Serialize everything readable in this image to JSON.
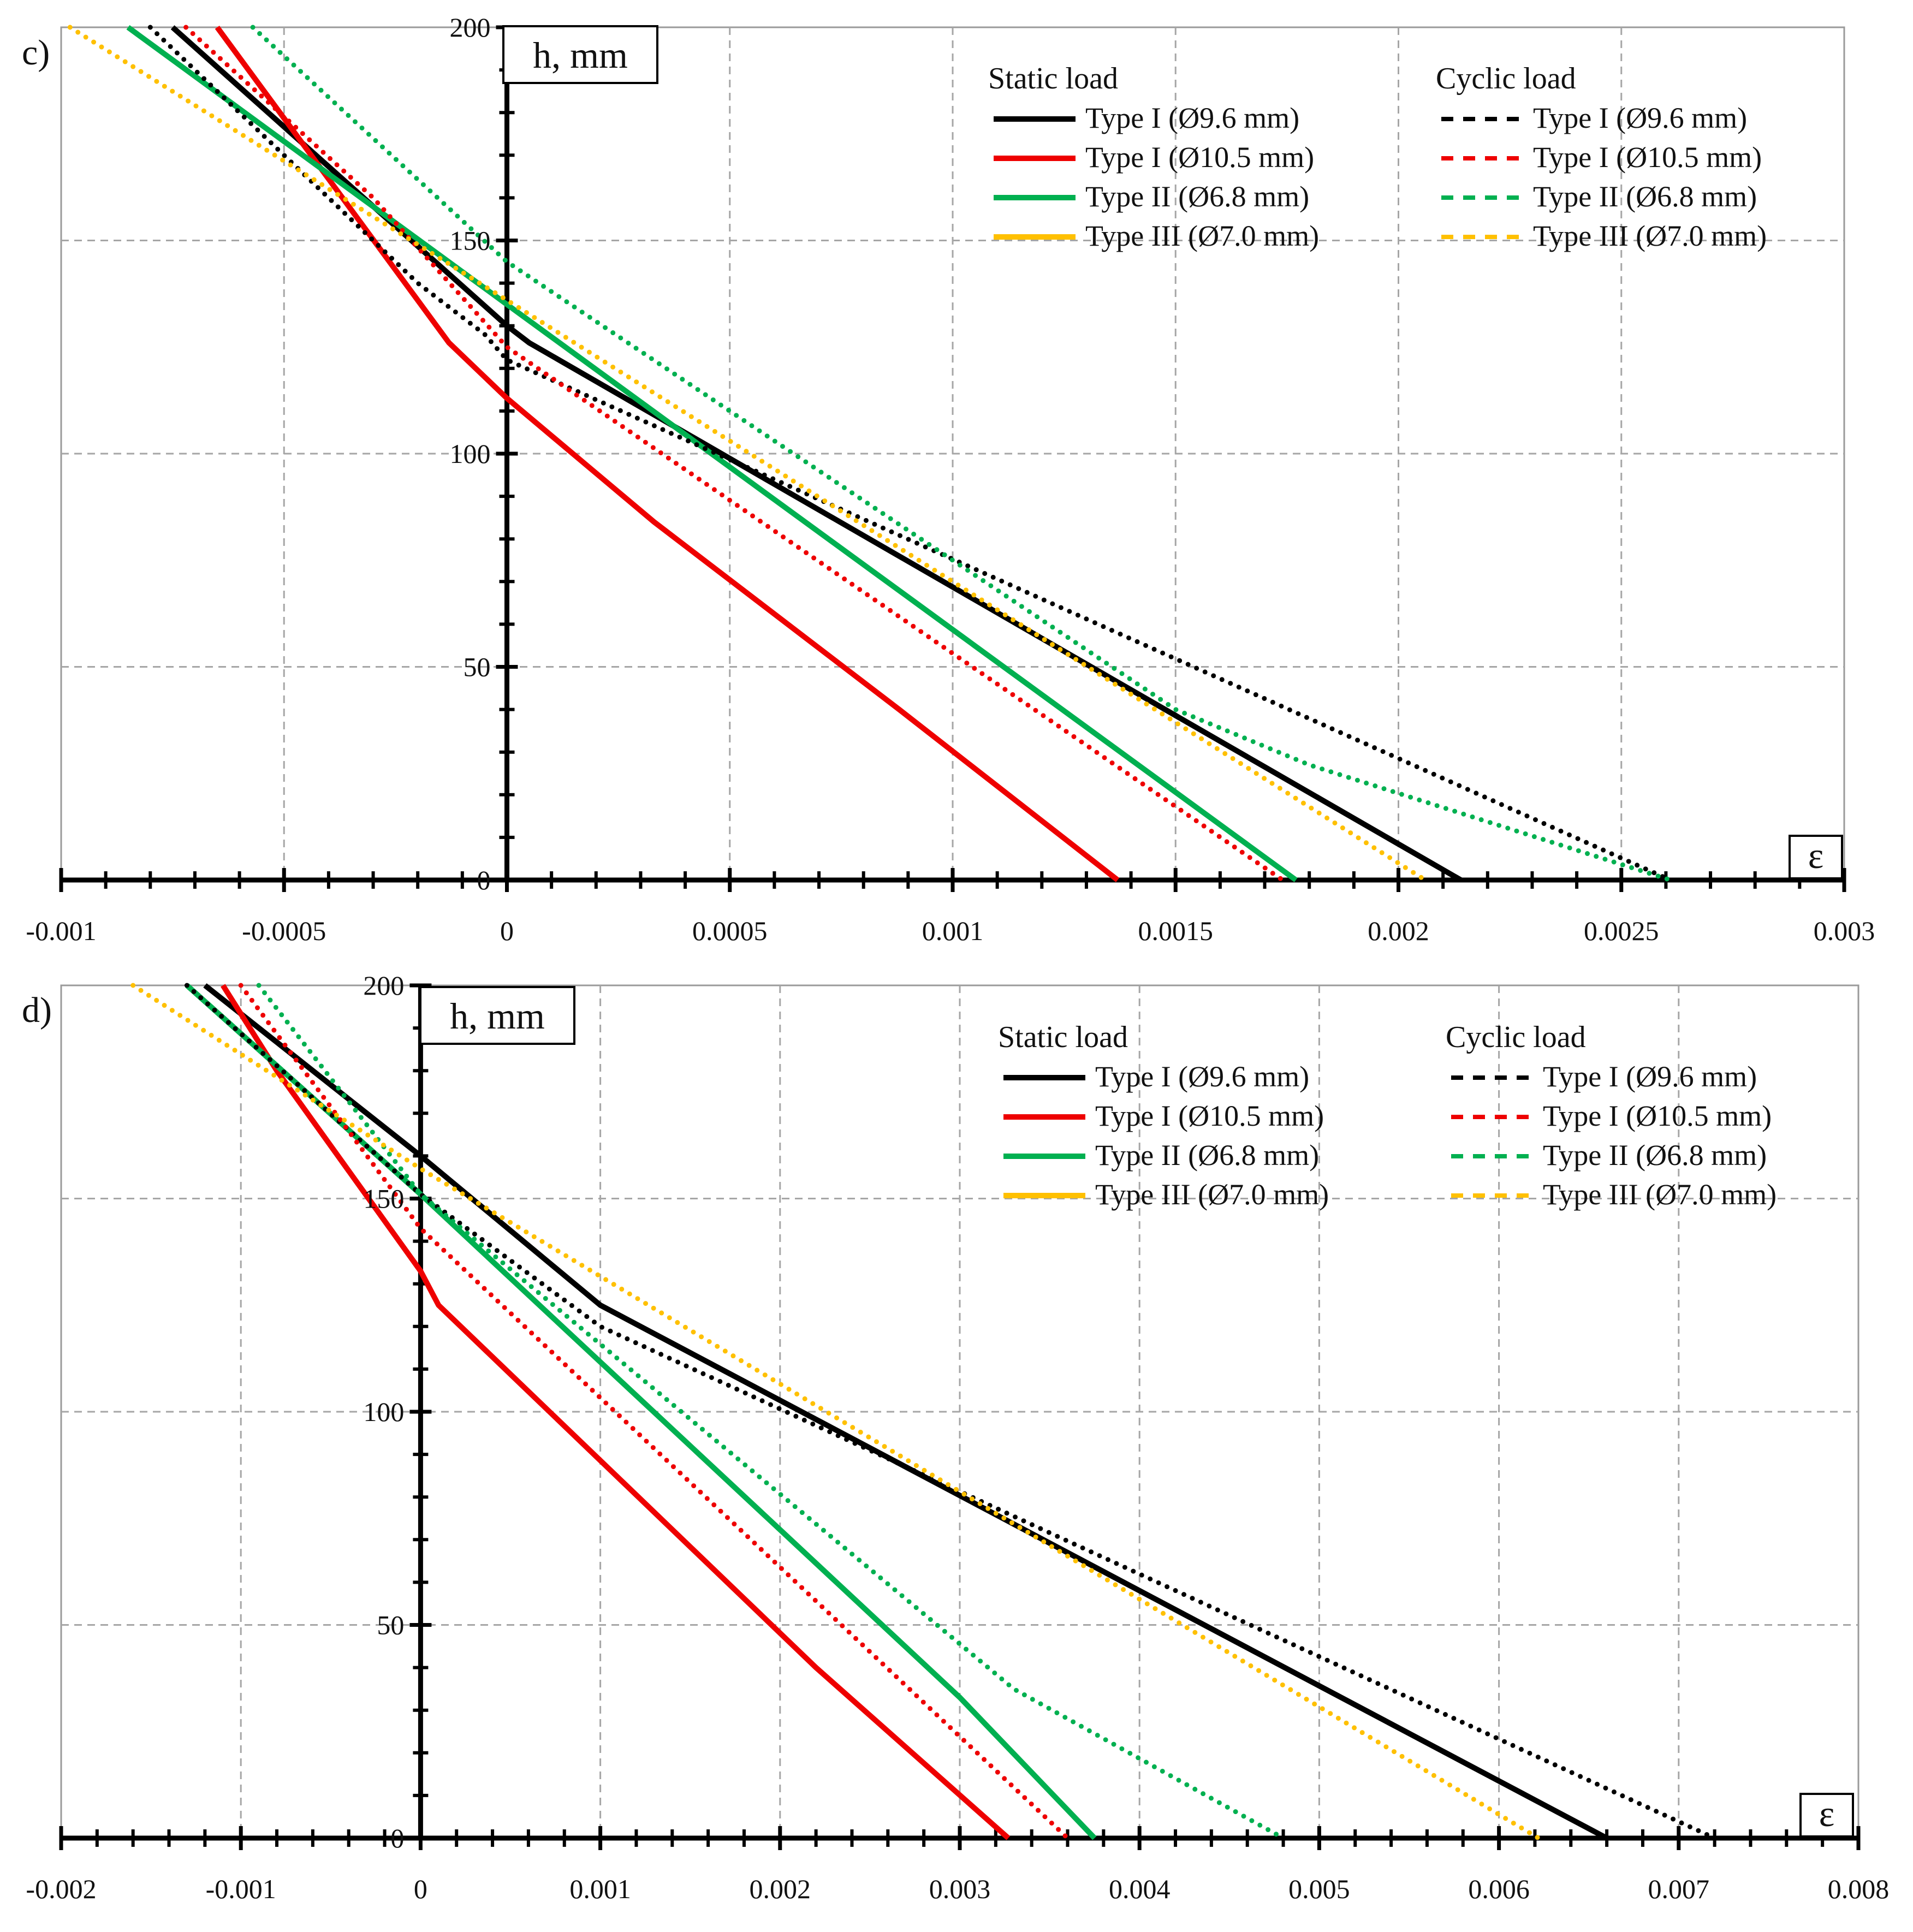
{
  "chart_data": [
    {
      "type": "line",
      "panel": "c)",
      "ylabel": "h, mm",
      "xlabel": "ε",
      "xlim": [
        -0.001,
        0.003
      ],
      "ylim": [
        0,
        200
      ],
      "x_ticks": [
        "-0.001",
        "-0.0005",
        "0",
        "0.0005",
        "0.001",
        "0.0015",
        "0.002",
        "0.0025",
        "0.003"
      ],
      "y_ticks": [
        "0",
        "50",
        "100",
        "150",
        "200"
      ],
      "legend": {
        "static_title": "Static load",
        "cyclic_title": "Cyclic load",
        "static_labels": [
          "Type I (Ø9.6 mm)",
          "Type I (Ø10.5 mm)",
          "Type II (Ø6.8 mm)",
          "Type III (Ø7.0 mm)"
        ],
        "cyclic_labels": [
          "Type I (Ø9.6 mm)",
          "Type I (Ø10.5 mm)",
          "Type II (Ø6.8 mm)",
          "Type III (Ø7.0 mm)"
        ]
      },
      "series": [
        {
          "name": "Static load – Type I (Ø9.6 mm)",
          "color": "#000000",
          "style": "solid",
          "points": [
            [
              -0.00075,
              200
            ],
            [
              0.0,
              130
            ],
            [
              5e-05,
              126
            ],
            [
              0.00214,
              0
            ]
          ]
        },
        {
          "name": "Static load – Type I (Ø10.5 mm)",
          "color": "#ee0000",
          "style": "solid",
          "points": [
            [
              -0.00065,
              200
            ],
            [
              -0.00013,
              126
            ],
            [
              0.0,
              113
            ],
            [
              0.00033,
              84
            ],
            [
              0.00088,
              40
            ],
            [
              0.00137,
              0
            ]
          ]
        },
        {
          "name": "Static load – Type II (Ø6.8 mm)",
          "color": "#00b050",
          "style": "solid",
          "points": [
            [
              -0.00085,
              200
            ],
            [
              0.0,
              135
            ],
            [
              0.00177,
              0
            ]
          ]
        },
        {
          "name": "Static load – Type III (Ø7.0 mm)",
          "color": "#ffc000",
          "style": "solid",
          "points": [
            [
              0.00203,
              0
            ]
          ]
        },
        {
          "name": "Cyclic load – Type I (Ø9.6 mm)",
          "color": "#000000",
          "style": "dotted",
          "points": [
            [
              -0.0008,
              200
            ],
            [
              -0.0002,
              140
            ],
            [
              -5e-05,
              128
            ],
            [
              0.0,
              122
            ],
            [
              0.00261,
              0
            ]
          ]
        },
        {
          "name": "Cyclic load – Type I (Ø10.5 mm)",
          "color": "#ee0000",
          "style": "dotted",
          "points": [
            [
              -0.00072,
              200
            ],
            [
              -0.0003,
              160
            ],
            [
              0.0,
              125
            ],
            [
              0.00174,
              0
            ]
          ]
        },
        {
          "name": "Cyclic load – Type II (Ø6.8 mm)",
          "color": "#00b050",
          "style": "dotted",
          "points": [
            [
              -0.00057,
              200
            ],
            [
              0.0,
              145
            ],
            [
              0.0015,
              40
            ],
            [
              0.0018,
              27
            ],
            [
              0.00261,
              0
            ]
          ]
        },
        {
          "name": "Cyclic load – Type III (Ø7.0 mm)",
          "color": "#ffc000",
          "style": "dotted",
          "points": [
            [
              -0.00098,
              200
            ],
            [
              0.0,
              136
            ],
            [
              0.00206,
              0
            ]
          ]
        }
      ]
    },
    {
      "type": "line",
      "panel": "d)",
      "ylabel": "h, mm",
      "xlabel": "ε",
      "xlim": [
        -0.002,
        0.008
      ],
      "ylim": [
        0,
        200
      ],
      "x_ticks": [
        "-0.002",
        "-0.001",
        "0",
        "0.001",
        "0.002",
        "0.003",
        "0.004",
        "0.005",
        "0.006",
        "0.007",
        "0.008"
      ],
      "y_ticks": [
        "0",
        "50",
        "100",
        "150",
        "200"
      ],
      "legend": {
        "static_title": "Static load",
        "cyclic_title": "Cyclic load",
        "static_labels": [
          "Type I (Ø9.6 mm)",
          "Type I (Ø10.5 mm)",
          "Type II (Ø6.8 mm)",
          "Type III (Ø7.0 mm)"
        ],
        "cyclic_labels": [
          "Type I (Ø9.6 mm)",
          "Type I (Ø10.5 mm)",
          "Type II (Ø6.8 mm)",
          "Type III (Ø7.0 mm)"
        ]
      },
      "series": [
        {
          "name": "Static load – Type I (Ø9.6 mm)",
          "color": "#000000",
          "style": "solid",
          "points": [
            [
              -0.0012,
              200
            ],
            [
              0.0,
              160
            ],
            [
              0.001,
              125
            ],
            [
              0.0066,
              0
            ]
          ]
        },
        {
          "name": "Static load – Type I (Ø10.5 mm)",
          "color": "#ee0000",
          "style": "solid",
          "points": [
            [
              -0.0011,
              200
            ],
            [
              -0.0008,
              180
            ],
            [
              0.0,
              133
            ],
            [
              0.0001,
              125
            ],
            [
              0.0022,
              40
            ],
            [
              0.00327,
              0
            ]
          ]
        },
        {
          "name": "Static load – Type II (Ø6.8 mm)",
          "color": "#00b050",
          "style": "solid",
          "points": [
            [
              -0.0013,
              200
            ],
            [
              0.0,
              151
            ],
            [
              0.003,
              33
            ],
            [
              0.00375,
              0
            ]
          ]
        },
        {
          "name": "Static load – Type III (Ø7.0 mm)",
          "color": "#ffc000",
          "style": "solid",
          "points": [
            [
              0.0061,
              0
            ]
          ]
        },
        {
          "name": "Cyclic load – Type I (Ø9.6 mm)",
          "color": "#000000",
          "style": "dotted",
          "points": [
            [
              -0.0013,
              200
            ],
            [
              0.0,
              151
            ],
            [
              0.001,
              120
            ],
            [
              0.0072,
              0
            ]
          ]
        },
        {
          "name": "Cyclic load – Type I (Ø10.5 mm)",
          "color": "#ee0000",
          "style": "dotted",
          "points": [
            [
              -0.001,
              200
            ],
            [
              0.0,
              143
            ],
            [
              0.0036,
              0
            ]
          ]
        },
        {
          "name": "Cyclic load – Type II (Ø6.8 mm)",
          "color": "#00b050",
          "style": "dotted",
          "points": [
            [
              -0.0009,
              200
            ],
            [
              0.0,
              151
            ],
            [
              0.0033,
              35
            ],
            [
              0.0048,
              0
            ]
          ]
        },
        {
          "name": "Cyclic load – Type III (Ø7.0 mm)",
          "color": "#ffc000",
          "style": "dotted",
          "points": [
            [
              -0.0016,
              200
            ],
            [
              0.0,
              157
            ],
            [
              0.00622,
              0
            ]
          ]
        }
      ]
    }
  ]
}
